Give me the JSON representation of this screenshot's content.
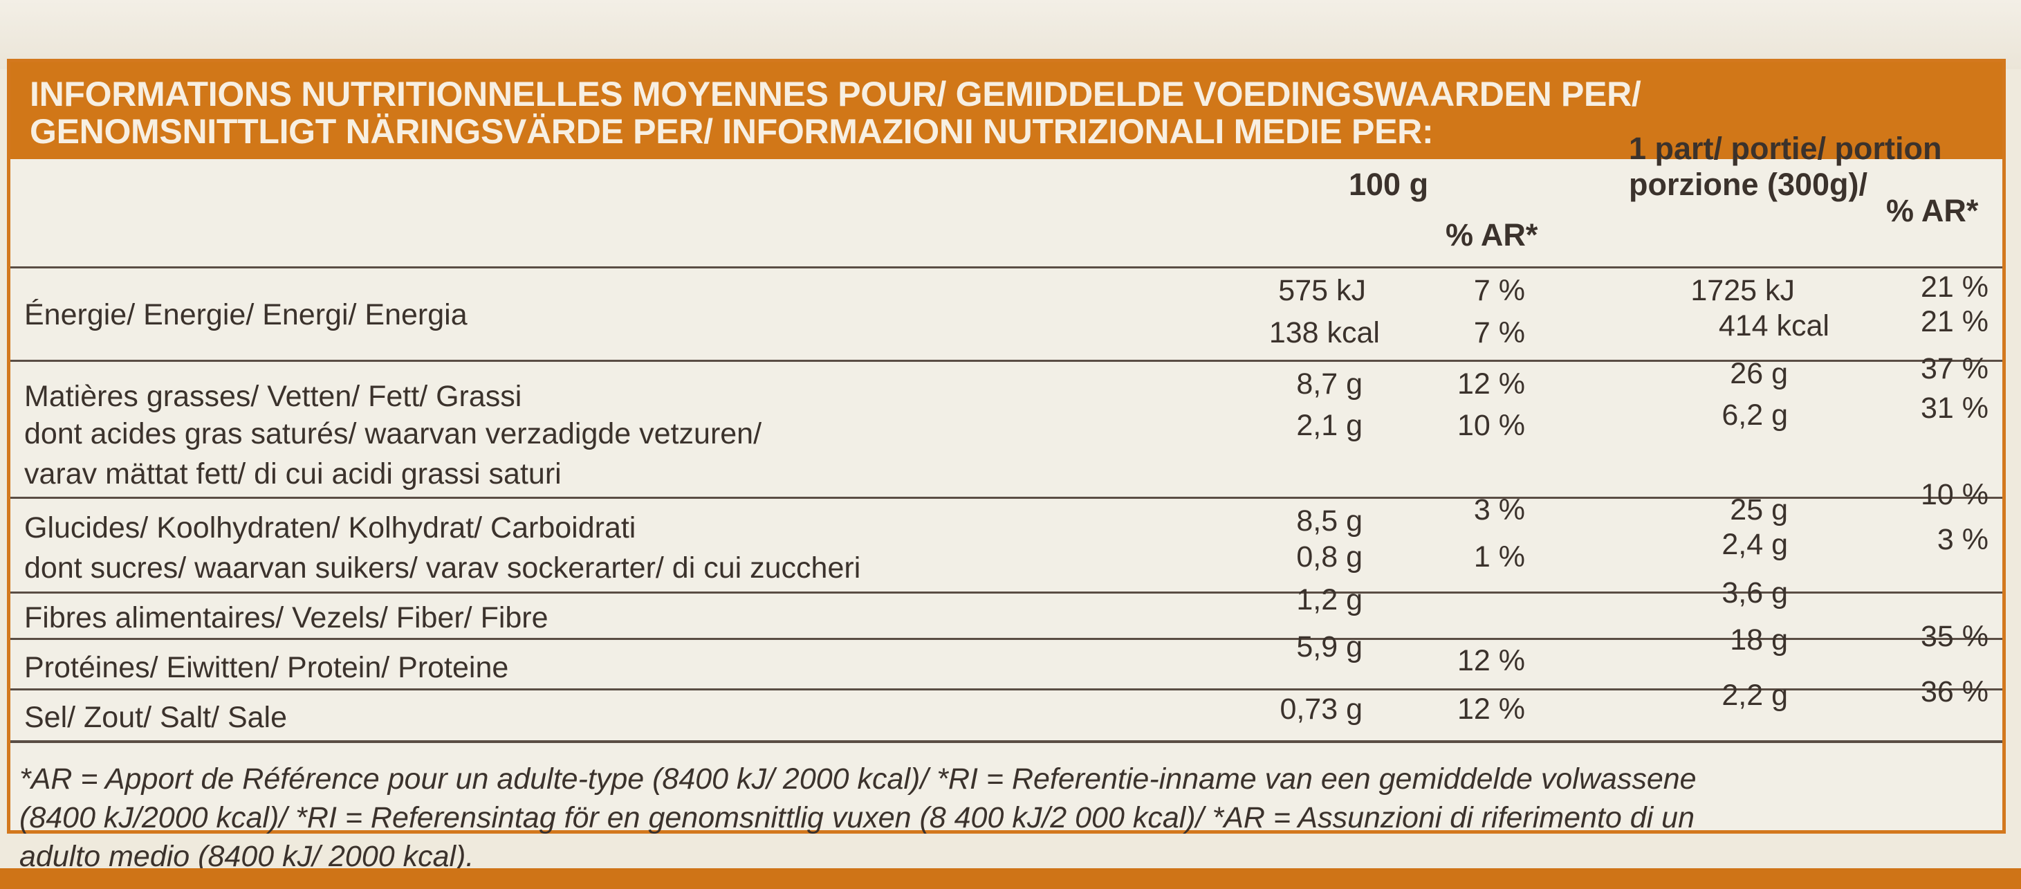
{
  "header": {
    "line1": "INFORMATIONS NUTRITIONNELLES MOYENNES POUR/ GEMIDDELDE VOEDINGSWAARDEN PER/",
    "line2": "GENOMSNITTLIGT NÄRINGSVÄRDE PER/ INFORMAZIONI NUTRIZIONALI MEDIE PER:"
  },
  "columns": {
    "per100g": "100 g",
    "ar_100": "% AR*",
    "portion_line1": "1 part/ portie/ portion",
    "portion_line2": "porzione (300g)/",
    "ar_portion": "% AR*"
  },
  "rows": {
    "energy": {
      "label": "Énergie/ Energie/ Energi/ Energia",
      "kj_100": "575 kJ",
      "kj_ar": "7 %",
      "kj_portion": "1725 kJ",
      "kj_portion_ar": "21 %",
      "kcal_100": "138 kcal",
      "kcal_ar": "7 %",
      "kcal_portion": "414 kcal",
      "kcal_portion_ar": "21 %"
    },
    "fat": {
      "label": "Matières grasses/ Vetten/ Fett/ Grassi",
      "v100": "8,7 g",
      "ar100": "12 %",
      "vport": "26 g",
      "arport": "37 %"
    },
    "saturates": {
      "label1": "dont acides gras saturés/ waarvan verzadigde vetzuren/",
      "label2": "varav mättat fett/ di cui acidi grassi saturi",
      "v100": "2,1 g",
      "ar100": "10 %",
      "vport": "6,2 g",
      "arport": "31 %"
    },
    "carbs": {
      "label": "Glucides/ Koolhydraten/ Kolhydrat/ Carboidrati",
      "v100": "8,5 g",
      "ar100": "3 %",
      "vport": "25 g",
      "arport": "10 %"
    },
    "sugars": {
      "label": "dont sucres/ waarvan suikers/ varav sockerarter/ di cui zuccheri",
      "v100": "0,8 g",
      "ar100": "1 %",
      "vport": "2,4 g",
      "arport": "3 %"
    },
    "fibre": {
      "label": "Fibres alimentaires/ Vezels/ Fiber/ Fibre",
      "v100": "1,2 g",
      "vport": "3,6 g"
    },
    "protein": {
      "label": "Protéines/ Eiwitten/ Protein/ Proteine",
      "v100": "5,9 g",
      "ar100": "12 %",
      "vport": "18 g",
      "arport": "35 %"
    },
    "salt": {
      "label": "Sel/ Zout/ Salt/ Sale",
      "v100": "0,73 g",
      "ar100": "12 %",
      "vport": "2,2 g",
      "arport": "36 %"
    }
  },
  "footnote": {
    "line1": "*AR = Apport de Référence pour un adulte-type (8400 kJ/ 2000 kcal)/ *RI = Referentie-inname van een gemiddelde volwassene",
    "line2": "(8400 kJ/2000 kcal)/ *RI = Referensintag för en genomsnittlig vuxen (8 400 kJ/2 000 kcal)/ *AR = Assunzioni di riferimento di un",
    "line3": "adulto medio (8400 kJ/ 2000 kcal)."
  },
  "colors": {
    "accent_orange": "#d17718",
    "paper": "#f2efe6",
    "text": "#3b322c"
  }
}
